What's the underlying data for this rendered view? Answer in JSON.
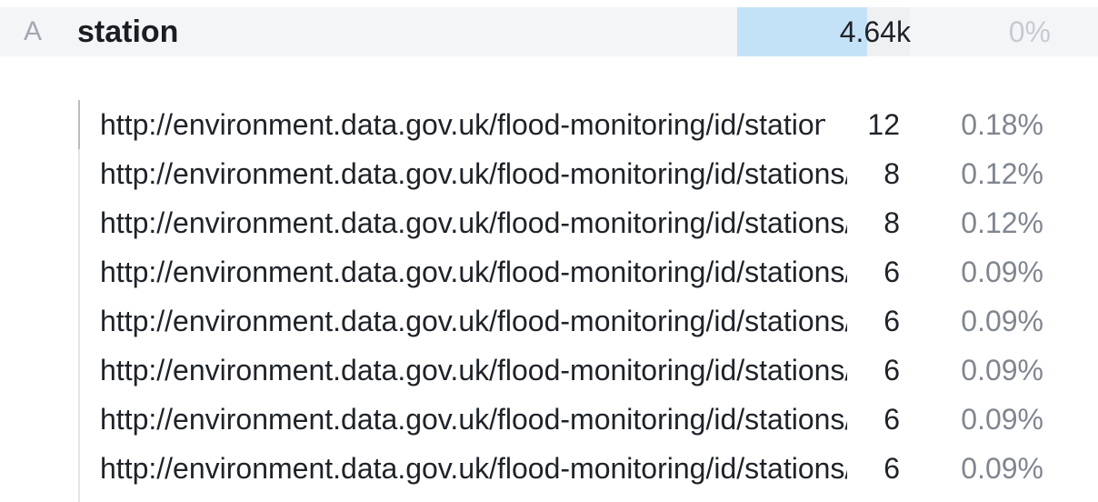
{
  "header": {
    "type_badge": "A",
    "column_name": "station",
    "count": "4.64k",
    "count_fraction": 0.75,
    "percent": "0%"
  },
  "values": [
    {
      "label": "http://environment.data.gov.uk/flood-monitoring/id/stations/",
      "count": "12",
      "percent": "0.18%"
    },
    {
      "label": "http://environment.data.gov.uk/flood-monitoring/id/stations/",
      "count": "8",
      "percent": "0.12%"
    },
    {
      "label": "http://environment.data.gov.uk/flood-monitoring/id/stations/",
      "count": "8",
      "percent": "0.12%"
    },
    {
      "label": "http://environment.data.gov.uk/flood-monitoring/id/stations/",
      "count": "6",
      "percent": "0.09%"
    },
    {
      "label": "http://environment.data.gov.uk/flood-monitoring/id/stations/",
      "count": "6",
      "percent": "0.09%"
    },
    {
      "label": "http://environment.data.gov.uk/flood-monitoring/id/stations/",
      "count": "6",
      "percent": "0.09%"
    },
    {
      "label": "http://environment.data.gov.uk/flood-monitoring/id/stations/",
      "count": "6",
      "percent": "0.09%"
    },
    {
      "label": "http://environment.data.gov.uk/flood-monitoring/id/stations/",
      "count": "6",
      "percent": "0.09%"
    }
  ],
  "colors": {
    "count_bar": "#c4e2f7",
    "header_bg": "#f4f5f7",
    "percent_text": "#80868f"
  }
}
